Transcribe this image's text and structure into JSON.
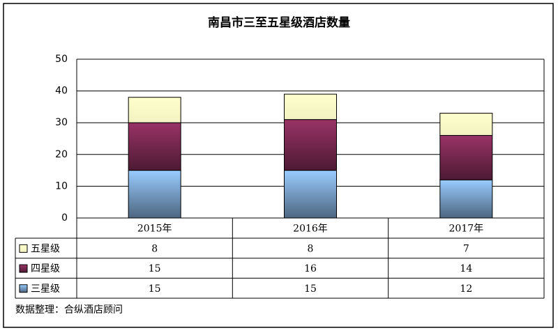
{
  "chart_data": {
    "type": "stacked-bar",
    "title": "南昌市三至五星级酒店数量",
    "source": "数据整理：合纵酒店顾问",
    "categories": [
      "2015年",
      "2016年",
      "2017年"
    ],
    "series": [
      {
        "name": "三星级",
        "color": "#99ccff",
        "values": [
          15,
          15,
          12
        ]
      },
      {
        "name": "四星级",
        "color": "#993366",
        "values": [
          15,
          16,
          14
        ]
      },
      {
        "name": "五星级",
        "color": "#ffffcc",
        "values": [
          8,
          8,
          7
        ]
      }
    ],
    "ylim": [
      0,
      50
    ],
    "yticks": [
      0,
      10,
      20,
      30,
      40,
      50
    ],
    "grid": true
  }
}
